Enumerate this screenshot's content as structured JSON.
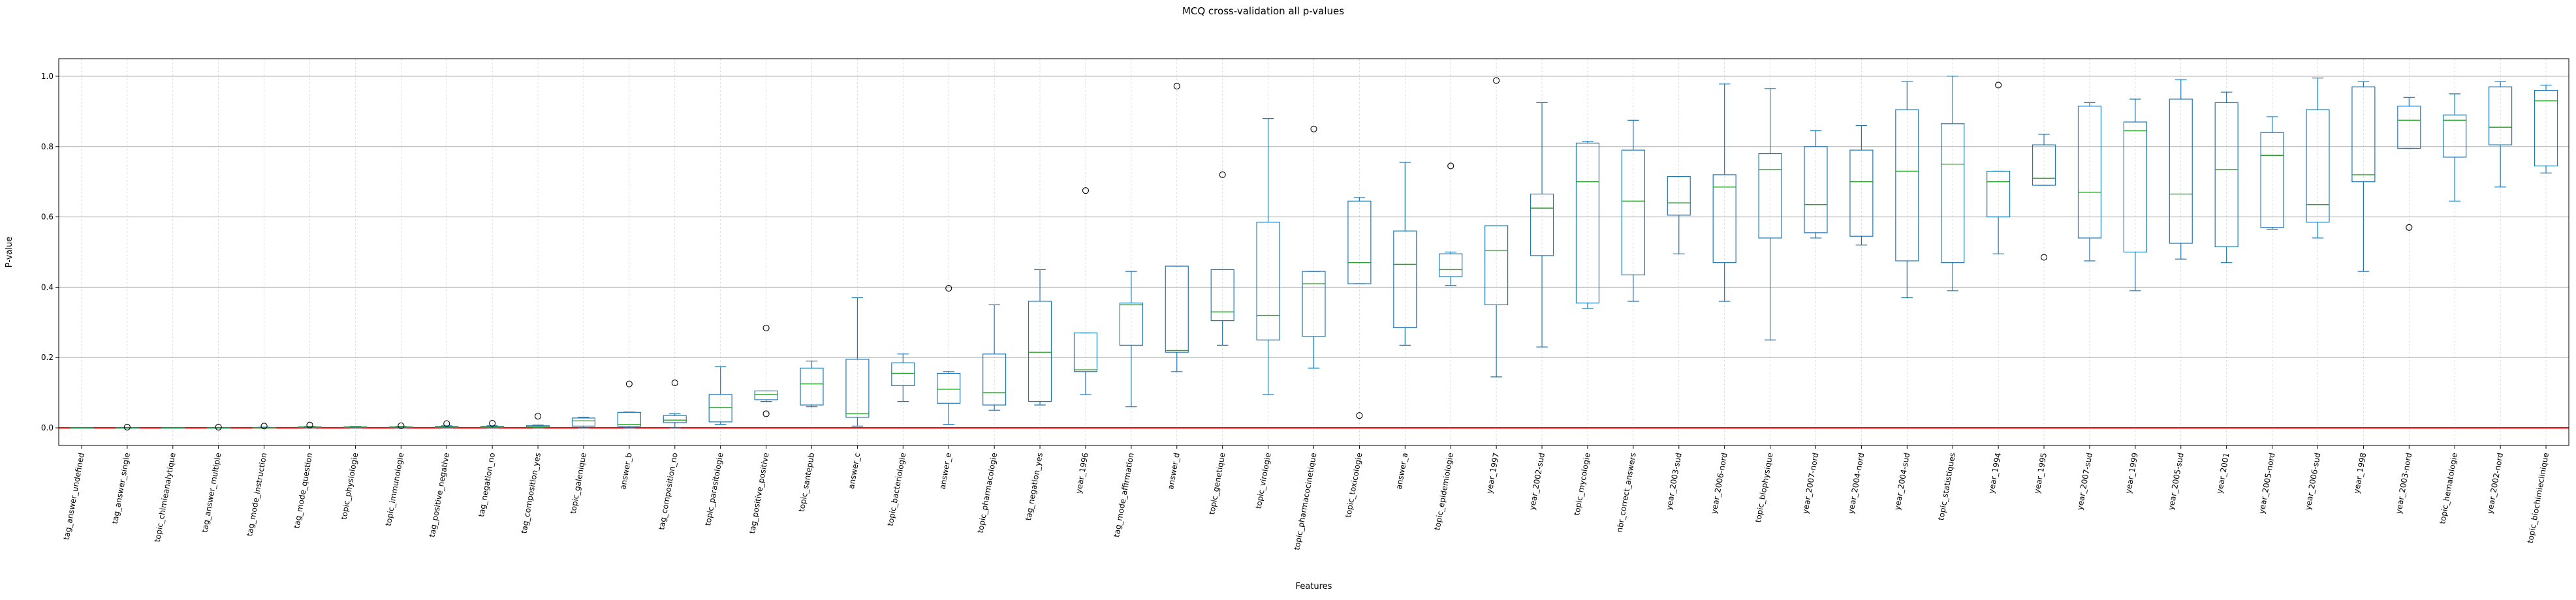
{
  "chart_data": {
    "type": "box",
    "title": "MCQ cross-validation all p-values",
    "xlabel": "Features",
    "ylabel": "P-value",
    "ylim": [
      -0.05,
      1.05
    ],
    "yticks": [
      0.0,
      0.2,
      0.4,
      0.6,
      0.8,
      1.0
    ],
    "ytick_labels": [
      "0.0",
      "0.2",
      "0.4",
      "0.6",
      "0.8",
      "1.0"
    ],
    "grid": true,
    "reference_line": 0.0,
    "colors": {
      "box": "#1f77b4",
      "median": "#2ca02c",
      "reference": "#ff0000",
      "grid": "#b0b0b0",
      "outlier": "#000000"
    },
    "categories": [
      "tag_answer_undefined",
      "tag_answer_single",
      "topic_chimieanalytique",
      "tag_answer_multiple",
      "tag_mode_instruction",
      "tag_mode_question",
      "topic_physiologie",
      "topic_immunologie",
      "tag_positive_negative",
      "tag_negation_no",
      "tag_composition_yes",
      "topic_galenique",
      "answer_b",
      "tag_composition_no",
      "topic_parasitologie",
      "tag_positive_positive",
      "topic_santepub",
      "answer_c",
      "topic_bacteriologie",
      "answer_e",
      "topic_pharmacologie",
      "tag_negation_yes",
      "year_1996",
      "tag_mode_affirmation",
      "answer_d",
      "topic_genetique",
      "topic_virologie",
      "topic_pharmacocinetique",
      "topic_toxicologie",
      "answer_a",
      "topic_epidemiologie",
      "year_1997",
      "year_2002-sud",
      "topic_mycologie",
      "nbr_correct_answers",
      "year_2003-sud",
      "year_2006-nord",
      "topic_biophysique",
      "year_2007-nord",
      "year_2004-nord",
      "year_2004-sud",
      "topic_statistiques",
      "year_1994",
      "year_1995",
      "year_2007-sud",
      "year_1999",
      "year_2005-sud",
      "year_2001",
      "year_2005-nord",
      "year_2006-sud",
      "year_1998",
      "year_2003-nord",
      "topic_hematologie",
      "year_2002-nord",
      "topic_biochimieclinique"
    ],
    "boxes": [
      {
        "whislo": 0.0,
        "q1": 0.0,
        "med": 0.0,
        "q3": 0.0,
        "whishi": 0.0,
        "fliers": []
      },
      {
        "whislo": 0.0,
        "q1": 0.0,
        "med": 0.0,
        "q3": 0.0,
        "whishi": 0.0,
        "fliers": [
          0.002
        ]
      },
      {
        "whislo": 0.0,
        "q1": 0.0,
        "med": 0.0,
        "q3": 0.0,
        "whishi": 0.0,
        "fliers": []
      },
      {
        "whislo": 0.0,
        "q1": 0.0,
        "med": 0.0,
        "q3": 0.0,
        "whishi": 0.0,
        "fliers": [
          0.002
        ]
      },
      {
        "whislo": 0.0,
        "q1": 0.0,
        "med": 0.0,
        "q3": 0.001,
        "whishi": 0.002,
        "fliers": [
          0.005
        ]
      },
      {
        "whislo": 0.0,
        "q1": 0.001,
        "med": 0.002,
        "q3": 0.003,
        "whishi": 0.004,
        "fliers": [
          0.008
        ]
      },
      {
        "whislo": 0.0,
        "q1": 0.001,
        "med": 0.002,
        "q3": 0.003,
        "whishi": 0.004,
        "fliers": []
      },
      {
        "whislo": 0.0,
        "q1": 0.001,
        "med": 0.002,
        "q3": 0.003,
        "whishi": 0.004,
        "fliers": [
          0.006
        ]
      },
      {
        "whislo": 0.0,
        "q1": 0.001,
        "med": 0.002,
        "q3": 0.004,
        "whishi": 0.006,
        "fliers": [
          0.012
        ]
      },
      {
        "whislo": 0.0,
        "q1": 0.001,
        "med": 0.002,
        "q3": 0.004,
        "whishi": 0.006,
        "fliers": [
          0.013
        ]
      },
      {
        "whislo": 0.0,
        "q1": 0.002,
        "med": 0.003,
        "q3": 0.006,
        "whishi": 0.008,
        "fliers": [
          0.033
        ]
      },
      {
        "whislo": 0.0,
        "q1": 0.005,
        "med": 0.02,
        "q3": 0.028,
        "whishi": 0.03,
        "fliers": []
      },
      {
        "whislo": 0.0,
        "q1": 0.004,
        "med": 0.01,
        "q3": 0.044,
        "whishi": 0.045,
        "fliers": [
          0.125
        ]
      },
      {
        "whislo": 0.0,
        "q1": 0.015,
        "med": 0.022,
        "q3": 0.035,
        "whishi": 0.04,
        "fliers": [
          0.128
        ]
      },
      {
        "whislo": 0.01,
        "q1": 0.017,
        "med": 0.058,
        "q3": 0.095,
        "whishi": 0.174,
        "fliers": []
      },
      {
        "whislo": 0.075,
        "q1": 0.08,
        "med": 0.095,
        "q3": 0.105,
        "whishi": 0.105,
        "fliers": [
          0.284,
          0.04
        ]
      },
      {
        "whislo": 0.06,
        "q1": 0.065,
        "med": 0.125,
        "q3": 0.17,
        "whishi": 0.19,
        "fliers": []
      },
      {
        "whislo": 0.005,
        "q1": 0.03,
        "med": 0.04,
        "q3": 0.195,
        "whishi": 0.37,
        "fliers": []
      },
      {
        "whislo": 0.075,
        "q1": 0.12,
        "med": 0.155,
        "q3": 0.185,
        "whishi": 0.21,
        "fliers": []
      },
      {
        "whislo": 0.01,
        "q1": 0.07,
        "med": 0.11,
        "q3": 0.155,
        "whishi": 0.16,
        "fliers": [
          0.397
        ]
      },
      {
        "whislo": 0.05,
        "q1": 0.065,
        "med": 0.1,
        "q3": 0.21,
        "whishi": 0.35,
        "fliers": []
      },
      {
        "whislo": 0.065,
        "q1": 0.075,
        "med": 0.215,
        "q3": 0.36,
        "whishi": 0.45,
        "fliers": []
      },
      {
        "whislo": 0.095,
        "q1": 0.16,
        "med": 0.165,
        "q3": 0.27,
        "whishi": 0.27,
        "fliers": [
          0.675
        ]
      },
      {
        "whislo": 0.06,
        "q1": 0.235,
        "med": 0.35,
        "q3": 0.355,
        "whishi": 0.445,
        "fliers": []
      },
      {
        "whislo": 0.16,
        "q1": 0.215,
        "med": 0.22,
        "q3": 0.46,
        "whishi": 0.46,
        "fliers": [
          0.972
        ]
      },
      {
        "whislo": 0.235,
        "q1": 0.305,
        "med": 0.33,
        "q3": 0.45,
        "whishi": 0.45,
        "fliers": [
          0.72
        ]
      },
      {
        "whislo": 0.095,
        "q1": 0.25,
        "med": 0.32,
        "q3": 0.585,
        "whishi": 0.88,
        "fliers": []
      },
      {
        "whislo": 0.17,
        "q1": 0.26,
        "med": 0.41,
        "q3": 0.445,
        "whishi": 0.445,
        "fliers": [
          0.85
        ]
      },
      {
        "whislo": 0.41,
        "q1": 0.41,
        "med": 0.47,
        "q3": 0.645,
        "whishi": 0.655,
        "fliers": [
          0.035
        ]
      },
      {
        "whislo": 0.235,
        "q1": 0.285,
        "med": 0.465,
        "q3": 0.56,
        "whishi": 0.755,
        "fliers": []
      },
      {
        "whislo": 0.405,
        "q1": 0.43,
        "med": 0.45,
        "q3": 0.495,
        "whishi": 0.5,
        "fliers": [
          0.745
        ]
      },
      {
        "whislo": 0.145,
        "q1": 0.35,
        "med": 0.505,
        "q3": 0.575,
        "whishi": 0.575,
        "fliers": [
          0.988
        ]
      },
      {
        "whislo": 0.23,
        "q1": 0.49,
        "med": 0.625,
        "q3": 0.665,
        "whishi": 0.925,
        "fliers": []
      },
      {
        "whislo": 0.34,
        "q1": 0.355,
        "med": 0.7,
        "q3": 0.81,
        "whishi": 0.815,
        "fliers": []
      },
      {
        "whislo": 0.36,
        "q1": 0.435,
        "med": 0.645,
        "q3": 0.79,
        "whishi": 0.875,
        "fliers": []
      },
      {
        "whislo": 0.495,
        "q1": 0.605,
        "med": 0.64,
        "q3": 0.715,
        "whishi": 0.715,
        "fliers": []
      },
      {
        "whislo": 0.36,
        "q1": 0.47,
        "med": 0.685,
        "q3": 0.72,
        "whishi": 0.978,
        "fliers": []
      },
      {
        "whislo": 0.25,
        "q1": 0.54,
        "med": 0.735,
        "q3": 0.78,
        "whishi": 0.965,
        "fliers": []
      },
      {
        "whislo": 0.54,
        "q1": 0.555,
        "med": 0.635,
        "q3": 0.8,
        "whishi": 0.845,
        "fliers": []
      },
      {
        "whislo": 0.52,
        "q1": 0.545,
        "med": 0.7,
        "q3": 0.79,
        "whishi": 0.86,
        "fliers": []
      },
      {
        "whislo": 0.37,
        "q1": 0.475,
        "med": 0.73,
        "q3": 0.905,
        "whishi": 0.985,
        "fliers": []
      },
      {
        "whislo": 0.39,
        "q1": 0.47,
        "med": 0.75,
        "q3": 0.865,
        "whishi": 1.0,
        "fliers": []
      },
      {
        "whislo": 0.495,
        "q1": 0.6,
        "med": 0.7,
        "q3": 0.73,
        "whishi": 0.73,
        "fliers": [
          0.975
        ]
      },
      {
        "whislo": 0.69,
        "q1": 0.69,
        "med": 0.71,
        "q3": 0.805,
        "whishi": 0.835,
        "fliers": [
          0.485
        ]
      },
      {
        "whislo": 0.475,
        "q1": 0.54,
        "med": 0.67,
        "q3": 0.915,
        "whishi": 0.925,
        "fliers": []
      },
      {
        "whislo": 0.39,
        "q1": 0.5,
        "med": 0.845,
        "q3": 0.87,
        "whishi": 0.935,
        "fliers": []
      },
      {
        "whislo": 0.48,
        "q1": 0.525,
        "med": 0.665,
        "q3": 0.935,
        "whishi": 0.99,
        "fliers": []
      },
      {
        "whislo": 0.47,
        "q1": 0.515,
        "med": 0.735,
        "q3": 0.925,
        "whishi": 0.955,
        "fliers": []
      },
      {
        "whislo": 0.565,
        "q1": 0.57,
        "med": 0.775,
        "q3": 0.84,
        "whishi": 0.885,
        "fliers": []
      },
      {
        "whislo": 0.54,
        "q1": 0.585,
        "med": 0.635,
        "q3": 0.905,
        "whishi": 0.995,
        "fliers": []
      },
      {
        "whislo": 0.445,
        "q1": 0.7,
        "med": 0.72,
        "q3": 0.97,
        "whishi": 0.985,
        "fliers": []
      },
      {
        "whislo": 0.795,
        "q1": 0.795,
        "med": 0.875,
        "q3": 0.915,
        "whishi": 0.94,
        "fliers": [
          0.57
        ]
      },
      {
        "whislo": 0.645,
        "q1": 0.77,
        "med": 0.875,
        "q3": 0.89,
        "whishi": 0.95,
        "fliers": []
      },
      {
        "whislo": 0.685,
        "q1": 0.805,
        "med": 0.855,
        "q3": 0.97,
        "whishi": 0.985,
        "fliers": []
      },
      {
        "whislo": 0.725,
        "q1": 0.745,
        "med": 0.93,
        "q3": 0.96,
        "whishi": 0.975,
        "fliers": []
      }
    ]
  }
}
